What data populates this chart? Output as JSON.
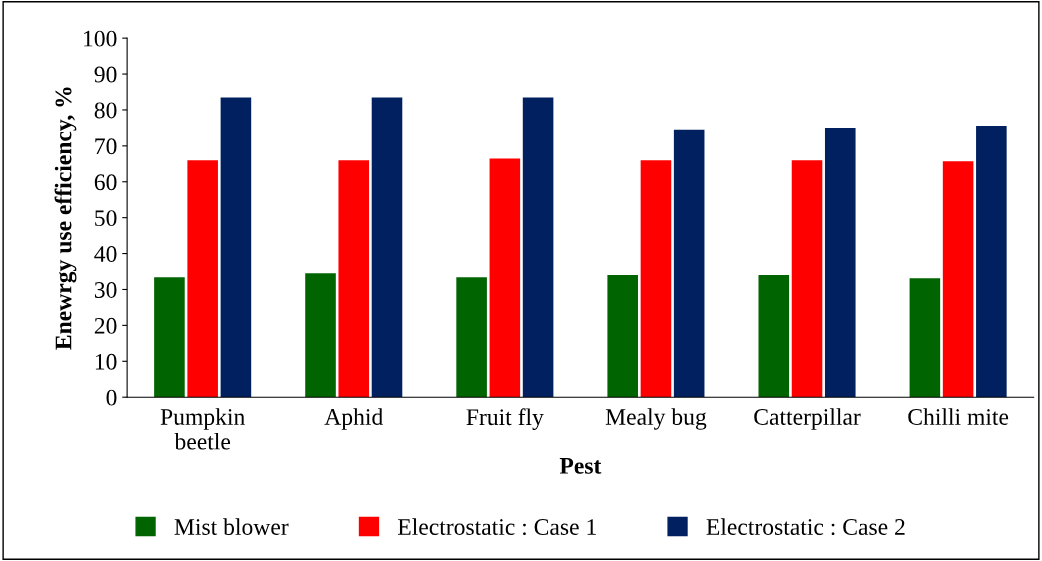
{
  "chart_data": {
    "type": "bar",
    "xlabel": "Pest",
    "ylabel": "Enewrgy use efficiency, %",
    "categories": [
      "Pumpkin\nbeetle",
      "Aphid",
      "Fruit fly",
      "Mealy bug",
      "Catterpillar",
      "Chilli mite"
    ],
    "series": [
      {
        "name": "Mist blower",
        "color": "#006400",
        "values": [
          33.4,
          34.5,
          33.4,
          34,
          34,
          33.1
        ]
      },
      {
        "name": "Electrostatic : Case 1",
        "color": "#ff0000",
        "values": [
          66,
          66,
          66.5,
          66,
          66,
          65.7
        ]
      },
      {
        "name": "Electrostatic : Case 2",
        "color": "#002060",
        "values": [
          83.5,
          83.5,
          83.5,
          74.5,
          75,
          75.5
        ]
      }
    ],
    "ylim": [
      0,
      100
    ],
    "yticks": [
      0,
      10,
      20,
      30,
      40,
      50,
      60,
      70,
      80,
      90,
      100
    ],
    "grid": false,
    "legend": "bottom"
  }
}
